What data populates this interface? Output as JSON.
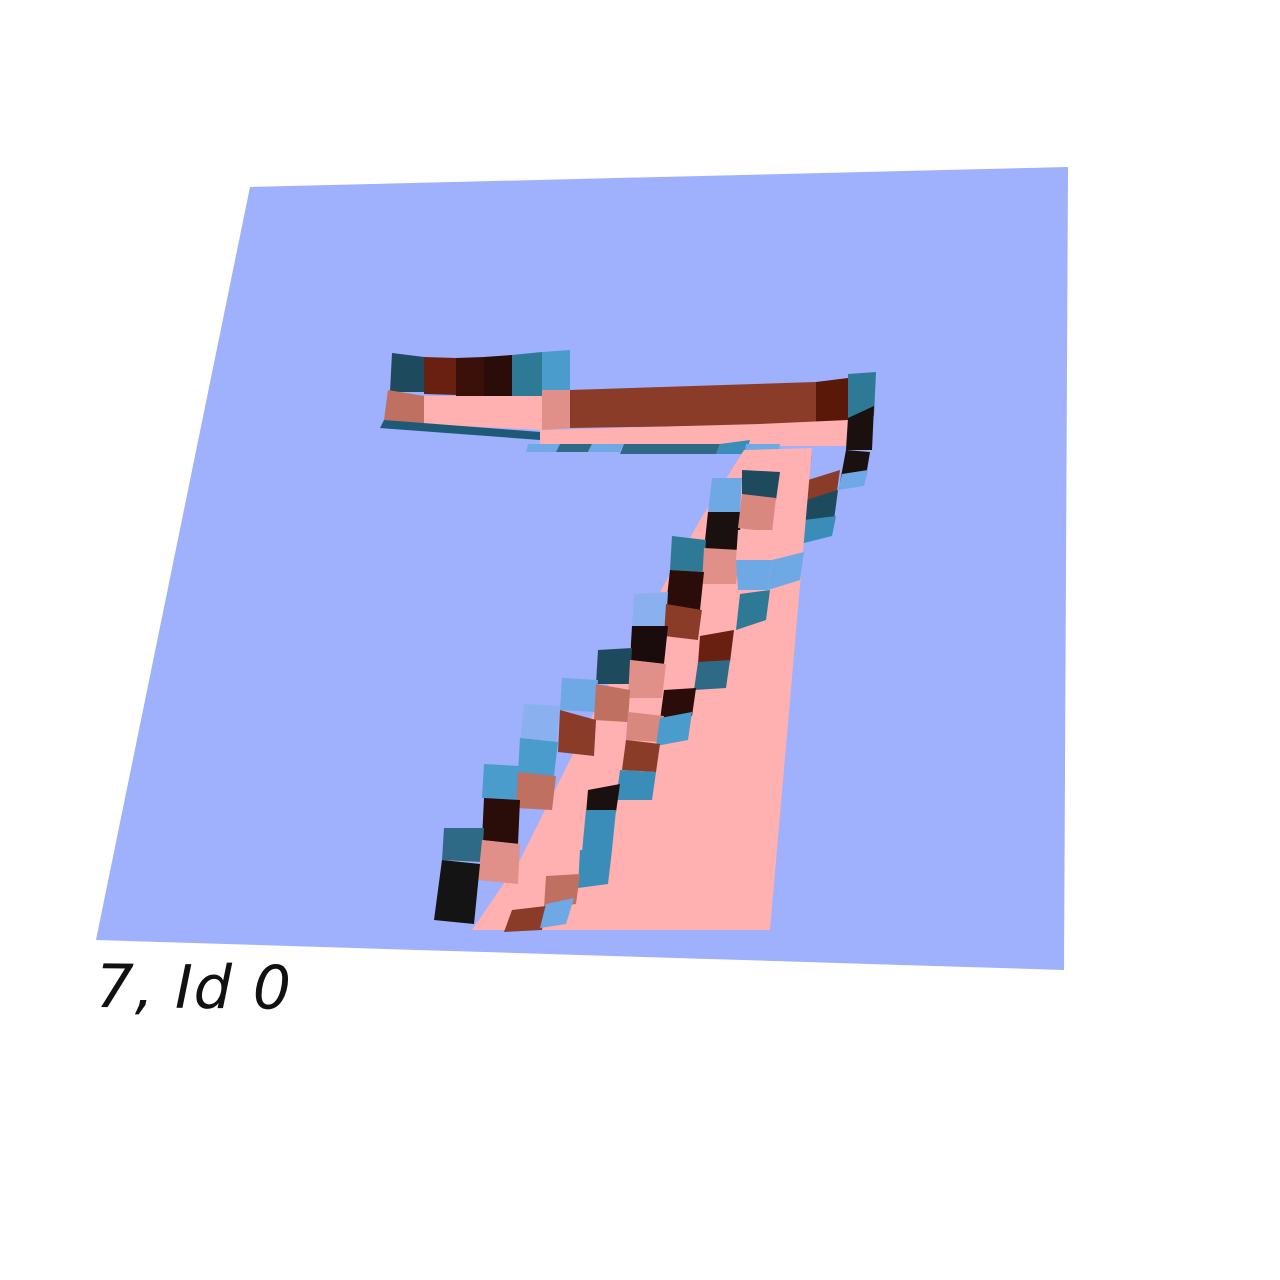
{
  "caption": "7, Id 0",
  "colors": {
    "background": "#ffffff",
    "base_plane": "#9fb0fc",
    "stroke_top_light": "#ffb0b0",
    "stroke_top_mid": "#d98880",
    "stroke_top_dark": "#8a3c28",
    "wall_dark": "#1a1010",
    "wall_blue": "#3a8db8",
    "wall_light_blue": "#6ea9e6"
  },
  "figure": {
    "label": "7",
    "id": 0
  }
}
